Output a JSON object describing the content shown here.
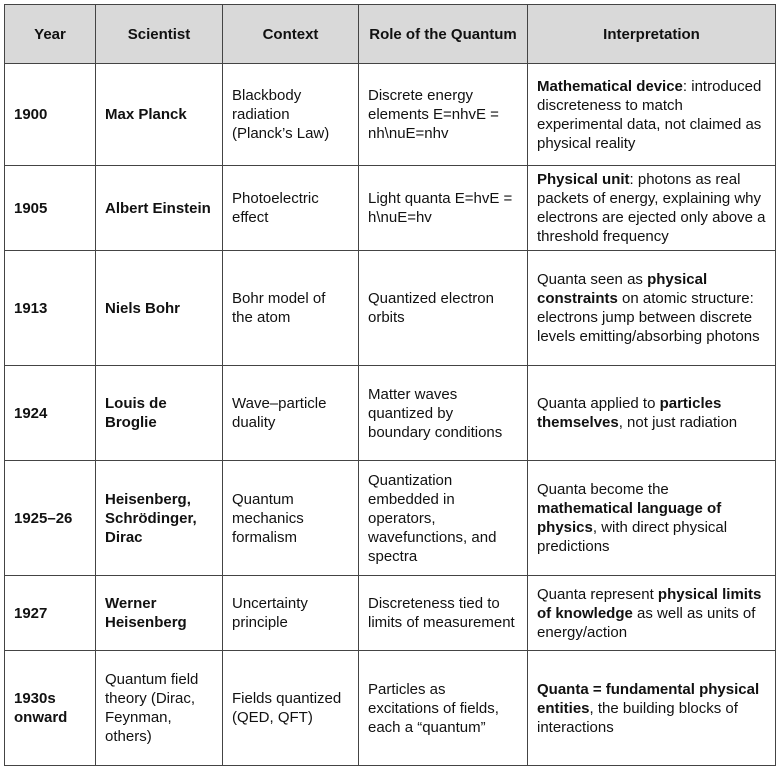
{
  "table": {
    "headers": [
      "Year",
      "Scientist",
      "Context",
      "Role of the Quantum",
      "Interpretation"
    ],
    "rows": [
      [
        "1900",
        "Max Planck",
        "Blackbody radiation (Planck’s Law)",
        "Discrete energy elements E=nhvE = nh\\nuE=nhv",
        [
          {
            "text": "Mathematical device",
            "bold": true
          },
          {
            "text": ": introduced discreteness to match experimental data, not claimed as physical reality",
            "bold": false
          }
        ]
      ],
      [
        "1905",
        "Albert Einstein",
        "Photoelectric effect",
        "Light quanta E=hvE = h\\nuE=hv",
        [
          {
            "text": "Physical unit",
            "bold": true
          },
          {
            "text": ": photons as real packets of energy, explaining why electrons are ejected only above a threshold frequency",
            "bold": false
          }
        ]
      ],
      [
        "1913",
        "Niels Bohr",
        "Bohr model of the atom",
        "Quantized electron orbits",
        [
          {
            "text": "Quanta seen as ",
            "bold": false
          },
          {
            "text": "physical constraints",
            "bold": true
          },
          {
            "text": " on atomic structure: electrons jump between discrete levels emitting/absorbing photons",
            "bold": false
          }
        ]
      ],
      [
        "1924",
        "Louis de Broglie",
        "Wave–particle duality",
        "Matter waves quantized by boundary conditions",
        [
          {
            "text": "Quanta applied to ",
            "bold": false
          },
          {
            "text": "particles themselves",
            "bold": true
          },
          {
            "text": ", not just radiation",
            "bold": false
          }
        ]
      ],
      [
        "1925–26",
        "Heisenberg, Schrödinger, Dirac",
        "Quantum mechanics formalism",
        "Quantization embedded in operators, wavefunctions, and spectra",
        [
          {
            "text": "Quanta become the ",
            "bold": false
          },
          {
            "text": "mathematical language of physics",
            "bold": true
          },
          {
            "text": ", with direct physical predictions",
            "bold": false
          }
        ]
      ],
      [
        "1927",
        "Werner Heisenberg",
        "Uncertainty principle",
        "Discreteness tied to limits of measurement",
        [
          {
            "text": "Quanta represent ",
            "bold": false
          },
          {
            "text": "physical limits of knowledge",
            "bold": true
          },
          {
            "text": " as well as units of energy/action",
            "bold": false
          }
        ]
      ],
      [
        "1930s onward",
        "Quantum field theory (Dirac, Feynman, others)",
        "Fields quantized (QED, QFT)",
        "Particles as excitations of fields, each a “quantum”",
        [
          {
            "text": "Quanta = fundamental physical entities",
            "bold": true
          },
          {
            "text": ", the building blocks of interactions",
            "bold": false
          }
        ]
      ]
    ]
  }
}
